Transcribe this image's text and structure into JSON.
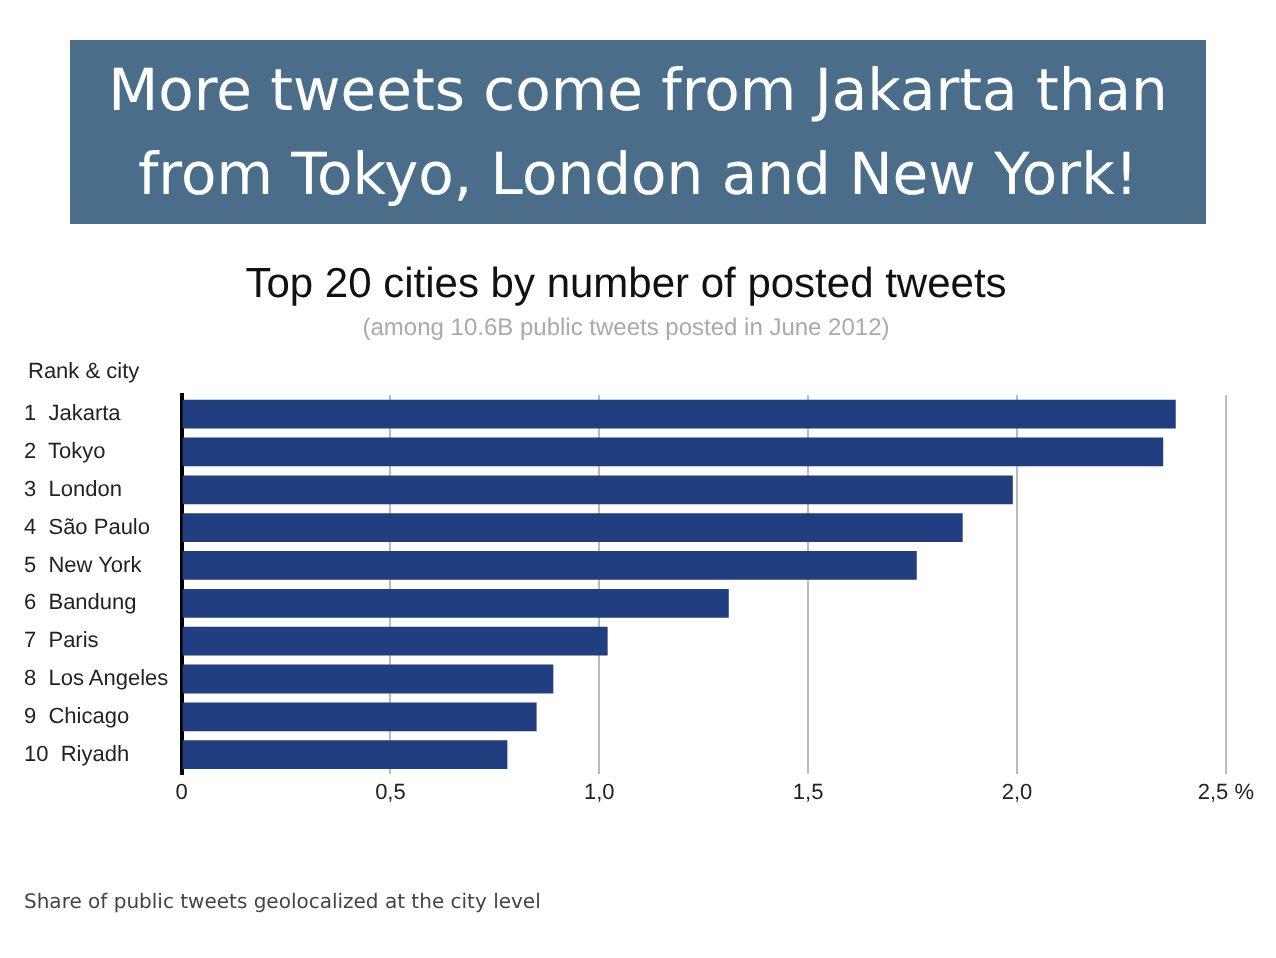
{
  "chart_data": {
    "type": "bar",
    "orientation": "horizontal",
    "title": "More tweets come from Jakarta than from Tokyo, London and New York!",
    "subtitle": "Top 20 cities by number of posted tweets",
    "ylabel": "Rank & city",
    "annotations": [
      "(among 10.6B public tweets posted in June 2012)",
      "Share of public tweets geolocalized at the city level"
    ],
    "categories": [
      "1  Jakarta",
      "2  Tokyo",
      "3  London",
      "4  São Paulo",
      "5  New York",
      "6  Bandung",
      "7  Paris",
      "8  Los Angeles",
      "9  Chicago",
      "10  Riyadh"
    ],
    "values": [
      2.38,
      2.35,
      1.99,
      1.87,
      1.76,
      1.31,
      1.02,
      0.89,
      0.85,
      0.78
    ],
    "color": "#213f80",
    "xlim": [
      0,
      2.5
    ],
    "xticks": [
      0,
      {
        "value": 0.5,
        "label": "0,5"
      },
      {
        "value": 1,
        "label": "1,0"
      },
      {
        "value": 1.5,
        "label": "1,5"
      },
      {
        "value": 2,
        "label": "2,0"
      },
      {
        "value": 2.5,
        "label": "2,5 %"
      }
    ],
    "grid": "x",
    "legend": false
  }
}
